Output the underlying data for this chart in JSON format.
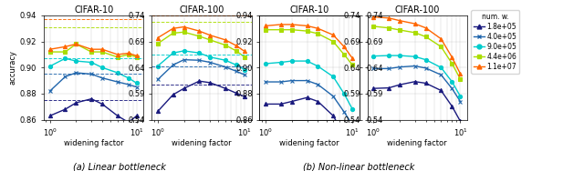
{
  "colors": {
    "1.8e+05": "#1a1a7e",
    "4.0e+05": "#2166ac",
    "9.0e+05": "#00cccc",
    "4.4e+06": "#aadd00",
    "1.1e+07": "#ff6600"
  },
  "markers": {
    "1.8e+05": "^",
    "4.0e+05": "x",
    "9.0e+05": "o",
    "4.4e+06": "s",
    "1.1e+07": "^"
  },
  "legend_labels": [
    "1.8e+05",
    "4.0e+05",
    "9.0e+05",
    "4.4e+06",
    "1.1e+07"
  ],
  "x_values": [
    1.0,
    1.5,
    2.0,
    3.0,
    4.0,
    6.0,
    8.0,
    10.0
  ],
  "linear_cifar10": {
    "1.8e+05": [
      0.863,
      0.868,
      0.873,
      0.876,
      0.872,
      0.863,
      0.858,
      0.863
    ],
    "4.0e+05": [
      0.882,
      0.893,
      0.896,
      0.895,
      0.892,
      0.889,
      0.887,
      0.885
    ],
    "9.0e+05": [
      0.901,
      0.907,
      0.905,
      0.904,
      0.9,
      0.896,
      0.892,
      0.888
    ],
    "4.4e+06": [
      0.912,
      0.912,
      0.918,
      0.912,
      0.912,
      0.908,
      0.91,
      0.908
    ],
    "1.1e+07": [
      0.914,
      0.916,
      0.918,
      0.914,
      0.914,
      0.91,
      0.911,
      0.909
    ]
  },
  "linear_cifar10_dashed": {
    "1.8e+05": 0.875,
    "4.0e+05": 0.895,
    "9.0e+05": 0.907,
    "4.4e+06": 0.931,
    "1.1e+07": 0.937
  },
  "linear_cifar100": {
    "1.8e+05": [
      0.556,
      0.588,
      0.6,
      0.614,
      0.611,
      0.6,
      0.591,
      0.584
    ],
    "4.0e+05": [
      0.617,
      0.645,
      0.655,
      0.654,
      0.65,
      0.641,
      0.633,
      0.626
    ],
    "9.0e+05": [
      0.643,
      0.668,
      0.672,
      0.668,
      0.66,
      0.654,
      0.645,
      0.636
    ],
    "4.4e+06": [
      0.686,
      0.706,
      0.708,
      0.7,
      0.693,
      0.683,
      0.672,
      0.66
    ],
    "1.1e+07": [
      0.697,
      0.715,
      0.718,
      0.71,
      0.702,
      0.693,
      0.682,
      0.671
    ]
  },
  "linear_cifar100_dashed": {
    "1.8e+05": 0.607,
    "4.0e+05": 0.642,
    "9.0e+05": 0.664,
    "4.4e+06": 0.727,
    "1.1e+07": 0.74
  },
  "nonlinear_cifar10": {
    "1.8e+05": [
      0.872,
      0.872,
      0.874,
      0.877,
      0.874,
      0.863,
      0.848,
      0.836
    ],
    "4.0e+05": [
      0.889,
      0.889,
      0.89,
      0.89,
      0.887,
      0.878,
      0.866,
      0.856
    ],
    "9.0e+05": [
      0.903,
      0.904,
      0.905,
      0.905,
      0.901,
      0.893,
      0.88,
      0.868
    ],
    "4.4e+06": [
      0.929,
      0.929,
      0.929,
      0.928,
      0.926,
      0.92,
      0.91,
      0.902
    ],
    "1.1e+07": [
      0.932,
      0.933,
      0.933,
      0.932,
      0.93,
      0.925,
      0.916,
      0.907
    ]
  },
  "nonlinear_cifar100": {
    "1.8e+05": [
      0.6,
      0.601,
      0.607,
      0.613,
      0.61,
      0.596,
      0.566,
      0.537
    ],
    "4.0e+05": [
      0.638,
      0.638,
      0.641,
      0.643,
      0.639,
      0.626,
      0.6,
      0.575
    ],
    "9.0e+05": [
      0.662,
      0.663,
      0.663,
      0.661,
      0.655,
      0.64,
      0.613,
      0.585
    ],
    "4.4e+06": [
      0.719,
      0.716,
      0.712,
      0.707,
      0.699,
      0.68,
      0.648,
      0.618
    ],
    "1.1e+07": [
      0.737,
      0.735,
      0.73,
      0.724,
      0.716,
      0.695,
      0.66,
      0.628
    ]
  },
  "ylim_cifar10": [
    0.86,
    0.94
  ],
  "ylim_cifar100": [
    0.54,
    0.74
  ],
  "yticks_cifar10": [
    0.86,
    0.88,
    0.9,
    0.92,
    0.94
  ],
  "yticks_cifar100": [
    0.54,
    0.59,
    0.64,
    0.69,
    0.74
  ],
  "caption_a": "(a) Linear bottleneck",
  "caption_b": "(b) Non-linear bottleneck"
}
